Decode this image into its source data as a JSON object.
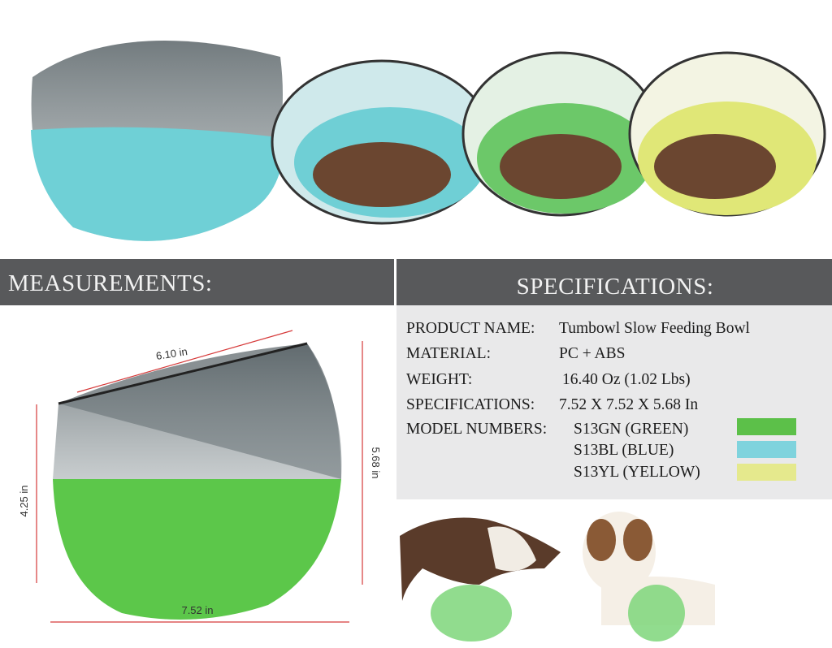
{
  "left_header": "MEASUREMENTS:",
  "right_header": "SPECIFICATIONS:",
  "dimensions": {
    "top_width": "6.10 in",
    "total_height": "5.68 in",
    "base_height": "4.25 in",
    "base_width": "7.52 in"
  },
  "specs": [
    {
      "label": "PRODUCT NAME:",
      "value": "Tumbowl Slow Feeding Bowl"
    },
    {
      "label": "MATERIAL:",
      "value": "PC + ABS"
    },
    {
      "label": "WEIGHT:",
      "value": "16.40 Oz (1.02 Lbs)"
    },
    {
      "label": "SPECIFICATIONS:",
      "value": "7.52 X 7.52 X 5.68 In"
    }
  ],
  "model_numbers": {
    "label": "MODEL NUMBERS:",
    "models": [
      {
        "name": "S13GN (GREEN)",
        "color": "#5cc049"
      },
      {
        "name": "S13BL  (BLUE)",
        "color": "#7fd3dd"
      },
      {
        "name": "S13YL (YELLOW)",
        "color": "#e5e98d"
      }
    ]
  }
}
